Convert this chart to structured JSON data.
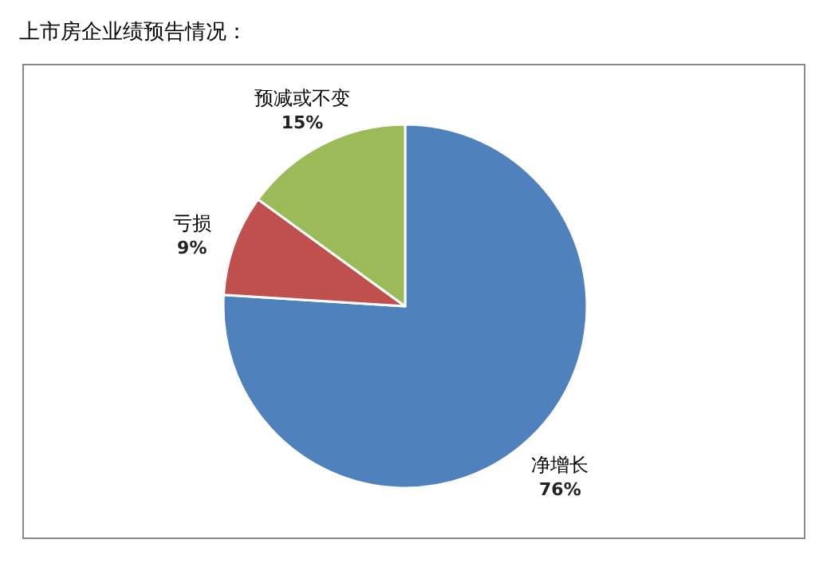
{
  "chart_data": {
    "type": "pie",
    "title": "上市房企业绩预告情况：",
    "categories": [
      "净增长",
      "亏损",
      "预减或不变"
    ],
    "values": [
      76,
      9,
      15
    ],
    "colors": [
      "#4f81bd",
      "#c0504d",
      "#9bbb59"
    ],
    "value_labels": [
      "76%",
      "9%",
      "15%"
    ]
  }
}
